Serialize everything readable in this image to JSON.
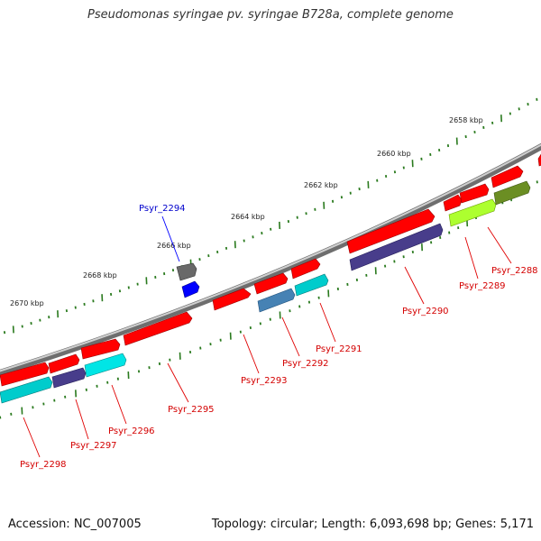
{
  "title": "Pseudomonas syringae pv. syringae B728a, complete genome",
  "footer": {
    "accession": "Accession: NC_007005",
    "summary": "Topology: circular; Length: 6,093,698 bp; Genes: 5,171"
  },
  "colors": {
    "backbone": "#8c8c8c",
    "tick": "#2a7a1e",
    "label_red": "#d40000",
    "label_blue": "#0000cc",
    "leader_red": "#e00000",
    "leader_blue": "#0000ff"
  },
  "kbp_labels": [
    "2658 kbp",
    "2660 kbp",
    "2662 kbp",
    "2664 kbp",
    "2666 kbp",
    "2668 kbp",
    "2670 kbp"
  ],
  "gene_labels": [
    "Psyr_2288",
    "Psyr_2289",
    "Psyr_2290",
    "Psyr_2291",
    "Psyr_2292",
    "Psyr_2293",
    "Psyr_2294",
    "Psyr_2295",
    "Psyr_2296",
    "Psyr_2297",
    "Psyr_2298"
  ],
  "feature_colors": [
    "#ff0000",
    "#483d8b",
    "#00cccc",
    "#4682b4",
    "#adff2f",
    "#6b8e23",
    "#0000ff",
    "#696969"
  ]
}
